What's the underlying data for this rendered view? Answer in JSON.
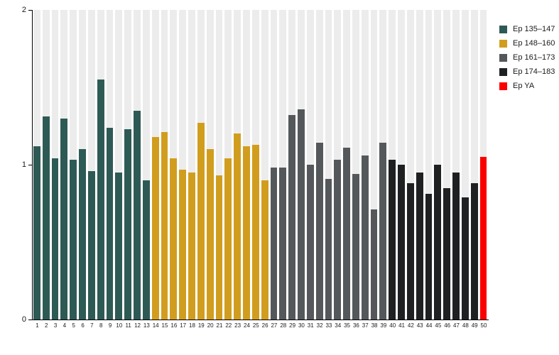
{
  "chart": {
    "title": "",
    "legend_position": "top-right",
    "legend_items": [
      {
        "label": "Ep 135–147",
        "color": "#2e5a55"
      },
      {
        "label": "Ep 148–160",
        "color": "#d19d1e"
      },
      {
        "label": "Ep 161–173",
        "color": "#54585a"
      },
      {
        "label": "Ep 174–183",
        "color": "#1e2022"
      },
      {
        "label": "Ep YA",
        "color": "#fa0000"
      }
    ]
  },
  "chart_data": {
    "type": "bar",
    "title": "",
    "xlabel": "",
    "ylabel": "",
    "ylim": [
      0,
      2
    ],
    "yticks": [
      0,
      1,
      2
    ],
    "grid": "off",
    "background_stripe_color": "#ececec",
    "categories": [
      "1",
      "2",
      "3",
      "4",
      "5",
      "6",
      "7",
      "8",
      "9",
      "10",
      "11",
      "12",
      "13",
      "14",
      "15",
      "16",
      "17",
      "18",
      "19",
      "20",
      "21",
      "22",
      "23",
      "24",
      "25",
      "26",
      "27",
      "28",
      "29",
      "30",
      "31",
      "32",
      "33",
      "34",
      "35",
      "36",
      "37",
      "38",
      "39",
      "40",
      "41",
      "42",
      "43",
      "44",
      "45",
      "46",
      "47",
      "48",
      "49",
      "50"
    ],
    "values": [
      1.12,
      1.31,
      1.04,
      1.3,
      1.03,
      1.1,
      0.96,
      1.55,
      1.24,
      0.95,
      1.23,
      1.35,
      0.9,
      1.18,
      1.21,
      1.04,
      0.97,
      0.95,
      1.27,
      1.1,
      0.93,
      1.04,
      1.2,
      1.12,
      1.13,
      0.9,
      0.98,
      0.98,
      1.32,
      1.36,
      1.0,
      1.14,
      0.91,
      1.03,
      1.11,
      0.94,
      1.06,
      0.71,
      1.14,
      1.03,
      1.0,
      0.88,
      0.95,
      0.81,
      1.0,
      0.85,
      0.95,
      0.79,
      0.88,
      1.05
    ],
    "groups": [
      {
        "name": "Ep 135–147",
        "color": "#2e5a55",
        "from": 1,
        "to": 13
      },
      {
        "name": "Ep 148–160",
        "color": "#d19d1e",
        "from": 14,
        "to": 26
      },
      {
        "name": "Ep 161–173",
        "color": "#54585a",
        "from": 27,
        "to": 39
      },
      {
        "name": "Ep 174–183",
        "color": "#1e2022",
        "from": 40,
        "to": 49
      },
      {
        "name": "Ep YA",
        "color": "#fa0000",
        "from": 50,
        "to": 50
      }
    ]
  }
}
